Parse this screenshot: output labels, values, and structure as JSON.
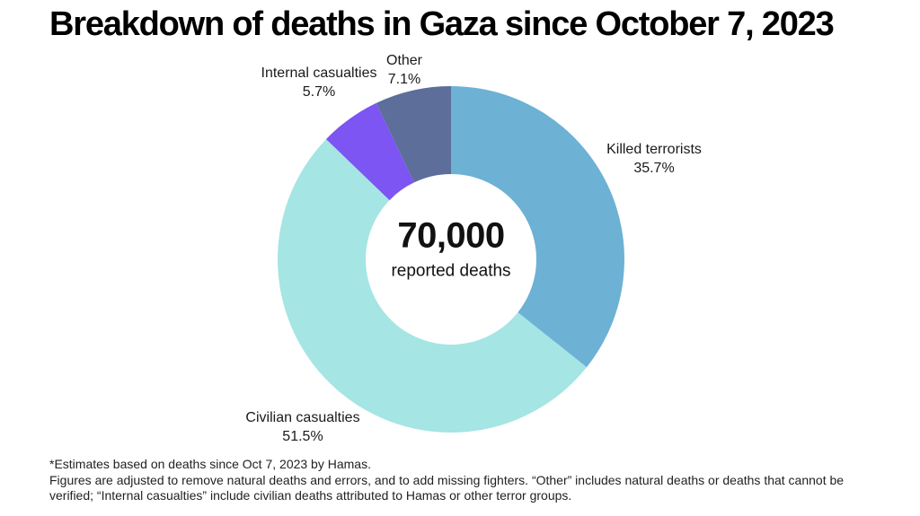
{
  "title": "Breakdown of deaths in Gaza since October 7, 2023",
  "chart_data": {
    "type": "pie",
    "variant": "donut",
    "start_angle_deg": 0,
    "direction": "clockwise",
    "center_value": "70,000",
    "center_label": "reported deaths",
    "slices": [
      {
        "label": "Killed terrorists",
        "pct": 35.7,
        "pct_label": "35.7%",
        "color": "#6db1d5"
      },
      {
        "label": "Civilian casualties",
        "pct": 51.5,
        "pct_label": "51.5%",
        "color": "#a5e5e4"
      },
      {
        "label": "Internal casualties",
        "pct": 5.7,
        "pct_label": "5.7%",
        "color": "#7c55f2"
      },
      {
        "label": "Other",
        "pct": 7.1,
        "pct_label": "7.1%",
        "color": "#5c6e99"
      }
    ]
  },
  "footnote": {
    "line1": "*Estimates based on deaths since Oct 7, 2023 by Hamas.",
    "line2": "Figures are adjusted to remove natural deaths and errors, and to add missing fighters. “Other” includes natural deaths or deaths that cannot be",
    "line3": "verified; “Internal casualties” include civilian deaths attributed to Hamas or other terror groups."
  }
}
